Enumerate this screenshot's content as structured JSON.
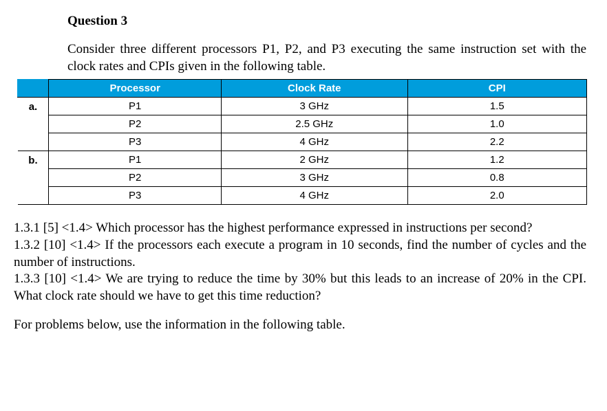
{
  "heading": "Question 3",
  "intro": "Consider three different processors P1, P2, and P3 executing the same instruction set with the clock rates and CPIs given in the following table.",
  "table": {
    "headers": {
      "c1": "Processor",
      "c2": "Clock Rate",
      "c3": "CPI"
    },
    "rows": [
      {
        "label": "a.",
        "proc": "P1",
        "rate": "3 GHz",
        "cpi": "1.5"
      },
      {
        "label": "",
        "proc": "P2",
        "rate": "2.5 GHz",
        "cpi": "1.0"
      },
      {
        "label": "",
        "proc": "P3",
        "rate": "4 GHz",
        "cpi": "2.2"
      },
      {
        "label": "b.",
        "proc": "P1",
        "rate": "2 GHz",
        "cpi": "1.2"
      },
      {
        "label": "",
        "proc": "P2",
        "rate": "3 GHz",
        "cpi": "0.8"
      },
      {
        "label": "",
        "proc": "P3",
        "rate": "4 GHz",
        "cpi": "2.0"
      }
    ]
  },
  "q131": "1.3.1 [5] <1.4> Which processor has the highest performance expressed in instructions per second?",
  "q132": "1.3.2 [10] <1.4> If the processors each execute a program in 10 seconds, find the number of cycles and the number of instructions.",
  "q133": "1.3.3 [10] <1.4> We are trying to reduce the time by 30% but this leads to an increase of 20% in the CPI. What clock rate should we have to get this time reduction?",
  "footer": "For problems below, use the information in the following table."
}
